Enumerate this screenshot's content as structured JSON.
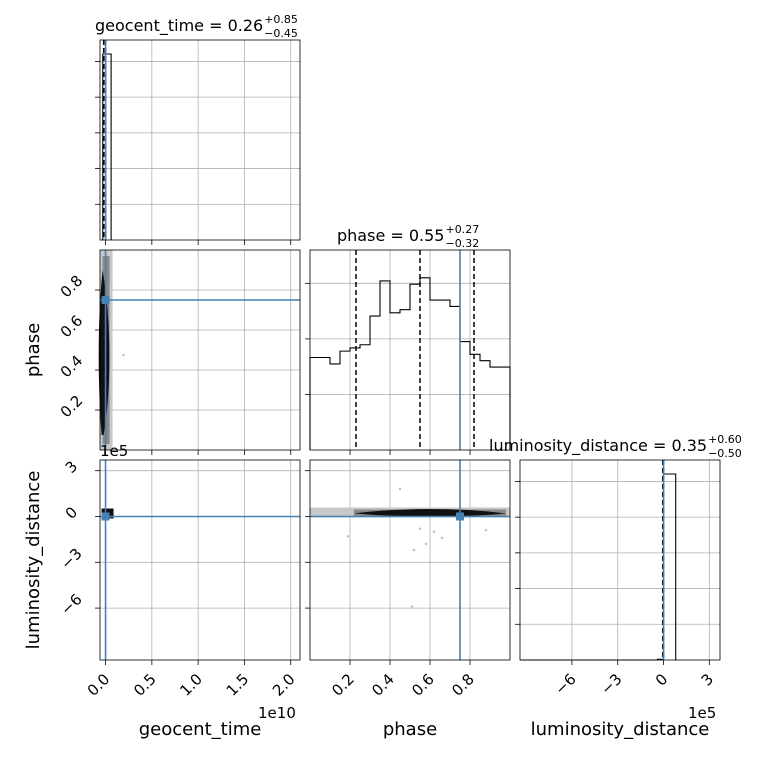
{
  "chart_data": {
    "type": "corner",
    "truth_color": "#4682b4",
    "hist_color": "#000000",
    "params": [
      "geocent_time",
      "phase",
      "luminosity_distance"
    ],
    "titles": [
      {
        "param": "geocent_time",
        "name": "geocent_time = ",
        "median": "0.26",
        "plus": "+0.85",
        "minus": "−0.45"
      },
      {
        "param": "phase",
        "name": "phase = ",
        "median": "0.55",
        "plus": "+0.27",
        "minus": "−0.32"
      },
      {
        "param": "luminosity_distance",
        "name": "luminosity_distance = ",
        "median": "0.35",
        "plus": "+0.60",
        "minus": "−0.50"
      }
    ],
    "axis_labels": {
      "x": [
        "geocent_time",
        "phase",
        "luminosity_distance"
      ],
      "y": [
        "phase",
        "luminosity_distance"
      ]
    },
    "offsets": {
      "geocent_time": "1e10",
      "luminosity_distance": "1e5"
    },
    "geocent_time": {
      "ticks": [
        0,
        0.5,
        1.0,
        1.5,
        2.0
      ],
      "tick_labels": [
        "0.0",
        "0.5",
        "1.0",
        "1.5",
        "2.0"
      ],
      "range": [
        -0.06,
        2.1
      ],
      "hist": {
        "edges": [
          -0.03,
          0.06
        ],
        "counts": [
          1
        ]
      },
      "quantiles": [
        -0.02,
        0.0
      ],
      "truth": 0.0
    },
    "phase": {
      "ticks": [
        0.2,
        0.4,
        0.6,
        0.8
      ],
      "tick_labels": [
        "0.2",
        "0.4",
        "0.6",
        "0.8"
      ],
      "range": [
        0.0,
        1.0
      ],
      "hist": {
        "edges": [
          0.0,
          0.05,
          0.1,
          0.15,
          0.2,
          0.25,
          0.3,
          0.35,
          0.4,
          0.45,
          0.5,
          0.55,
          0.6,
          0.65,
          0.7,
          0.75,
          0.8,
          0.85,
          0.9,
          0.95,
          1.0
        ],
        "counts": [
          29,
          29,
          27,
          31,
          32,
          33,
          42,
          53,
          43,
          44,
          52,
          54,
          47,
          47,
          45,
          34,
          30,
          28,
          26,
          26
        ]
      },
      "quantiles": [
        0.23,
        0.55,
        0.82
      ],
      "truth": 0.75
    },
    "luminosity_distance": {
      "ticks": [
        -6,
        -3,
        0,
        3
      ],
      "tick_labels": [
        "−6",
        "−3",
        "0",
        "3"
      ],
      "range": [
        -9.4,
        3.7
      ],
      "hist": {
        "edges": [
          -9.4,
          -0.4,
          0.0,
          0.8
        ],
        "counts": [
          0,
          0.4,
          100
        ]
      },
      "quantiles": [
        -0.05,
        0.0
      ],
      "truth": 0.0
    }
  }
}
